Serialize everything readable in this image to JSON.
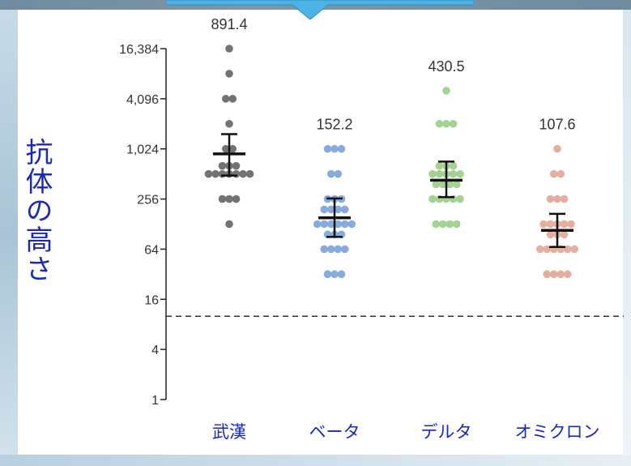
{
  "chart_data": {
    "type": "scatter",
    "ylabel": "抗体の高さ",
    "yscale": "log2",
    "ylim": [
      1,
      16384
    ],
    "y_ticks": [
      1,
      4,
      16,
      64,
      256,
      1024,
      4096,
      16384
    ],
    "y_tick_labels": [
      "1",
      "4",
      "16",
      "64",
      "256",
      "1,024",
      "4,096",
      "16,384"
    ],
    "threshold": 10,
    "categories": [
      "武漢",
      "ベータ",
      "デルタ",
      "オミクロン"
    ],
    "series": [
      {
        "color": "#6b6b6b",
        "mean_label": "891.4",
        "mean": 891.4,
        "ci_low": 490,
        "ci_high": 1540,
        "points": [
          {
            "y": 16384,
            "n": 1
          },
          {
            "y": 8192,
            "n": 1
          },
          {
            "y": 4096,
            "n": 2
          },
          {
            "y": 2048,
            "n": 1
          },
          {
            "y": 1024,
            "n": 2
          },
          {
            "y": 640,
            "n": 3
          },
          {
            "y": 512,
            "n": 7
          },
          {
            "y": 256,
            "n": 3
          },
          {
            "y": 128,
            "n": 1
          }
        ]
      },
      {
        "color": "#7fa6da",
        "mean_label": "152.2",
        "mean": 152.2,
        "ci_low": 90,
        "ci_high": 260,
        "points": [
          {
            "y": 1024,
            "n": 3
          },
          {
            "y": 512,
            "n": 2
          },
          {
            "y": 256,
            "n": 3
          },
          {
            "y": 192,
            "n": 4
          },
          {
            "y": 128,
            "n": 6
          },
          {
            "y": 96,
            "n": 3
          },
          {
            "y": 64,
            "n": 4
          },
          {
            "y": 32,
            "n": 3
          }
        ]
      },
      {
        "color": "#9fd08c",
        "mean_label": "430.5",
        "mean": 430.5,
        "ci_low": 270,
        "ci_high": 720,
        "points": [
          {
            "y": 5120,
            "n": 1
          },
          {
            "y": 2048,
            "n": 3
          },
          {
            "y": 640,
            "n": 3
          },
          {
            "y": 512,
            "n": 5
          },
          {
            "y": 384,
            "n": 4
          },
          {
            "y": 256,
            "n": 5
          },
          {
            "y": 128,
            "n": 4
          }
        ]
      },
      {
        "color": "#e3ab9b",
        "mean_label": "107.6",
        "mean": 107.6,
        "ci_low": 68,
        "ci_high": 170,
        "points": [
          {
            "y": 1024,
            "n": 1
          },
          {
            "y": 512,
            "n": 2
          },
          {
            "y": 256,
            "n": 3
          },
          {
            "y": 128,
            "n": 5
          },
          {
            "y": 96,
            "n": 3
          },
          {
            "y": 64,
            "n": 6
          },
          {
            "y": 32,
            "n": 4
          }
        ]
      }
    ]
  }
}
